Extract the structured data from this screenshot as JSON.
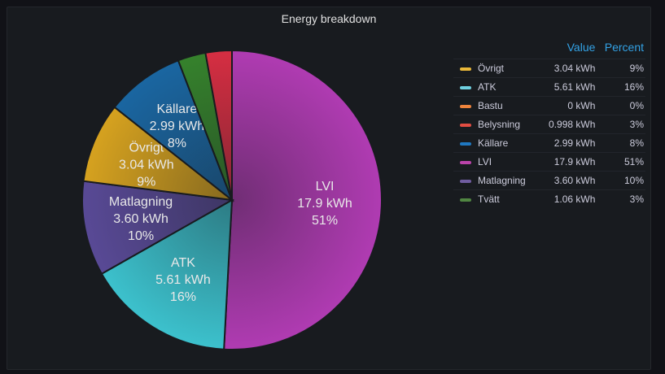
{
  "panel": {
    "title": "Energy breakdown"
  },
  "legend": {
    "value_header": "Value",
    "percent_header": "Percent"
  },
  "chart_data": {
    "type": "pie",
    "title": "Energy breakdown",
    "legend_placement": "right",
    "slices": [
      {
        "name": "LVI",
        "value": 17.9,
        "display": "17.9 kWh",
        "percent": "51%",
        "color": "#b83dba",
        "show_label": true
      },
      {
        "name": "ATK",
        "value": 5.61,
        "display": "5.61 kWh",
        "percent": "16%",
        "color": "#3ecad6",
        "show_label": true
      },
      {
        "name": "Matlagning",
        "value": 3.6,
        "display": "3.60 kWh",
        "percent": "10%",
        "color": "#5c4c9c",
        "show_label": true
      },
      {
        "name": "Övrigt",
        "value": 3.04,
        "display": "3.04 kWh",
        "percent": "9%",
        "color": "#e0a91f",
        "show_label": true
      },
      {
        "name": "Källare",
        "value": 2.99,
        "display": "2.99 kWh",
        "percent": "8%",
        "color": "#1a6aa8",
        "show_label": true
      },
      {
        "name": "Tvätt",
        "value": 1.06,
        "display": "1.06 kWh",
        "percent": "3%",
        "color": "#37872d",
        "show_label": false
      },
      {
        "name": "Belysning",
        "value": 0.998,
        "display": "0.998 kWh",
        "percent": "3%",
        "color": "#e02f44",
        "show_label": false
      },
      {
        "name": "Bastu",
        "value": 0,
        "display": "0 kWh",
        "percent": "0%",
        "color": "#fa6400",
        "show_label": false
      }
    ],
    "legend_order": [
      "Övrigt",
      "ATK",
      "Bastu",
      "Belysning",
      "Källare",
      "LVI",
      "Matlagning",
      "Tvätt"
    ],
    "legend_colors": {
      "Övrigt": "#eab839",
      "ATK": "#6ed0e0",
      "Bastu": "#ef843c",
      "Belysning": "#e24d42",
      "Källare": "#1f78c1",
      "LVI": "#ba43a9",
      "Matlagning": "#705da0",
      "Tvätt": "#508642"
    }
  }
}
